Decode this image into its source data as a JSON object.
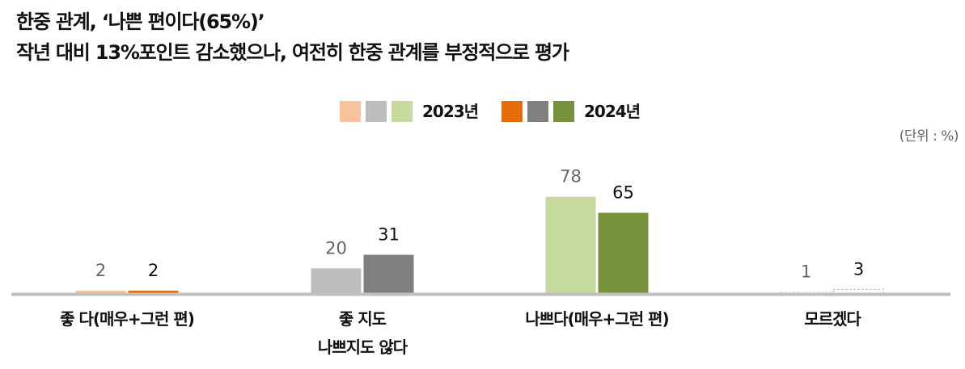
{
  "title": {
    "line1": "한중 관계, ‘나쁜 편이다(65%)’",
    "line2": "작년 대비 13%포인트 감소했으나, 여전히 한중 관계를 부정적으로 평가"
  },
  "legend": {
    "series_2023": "2023년",
    "series_2024": "2024년"
  },
  "unit_note": "(단위 : %)",
  "colors": {
    "2023": [
      "#F8C39C",
      "#BDBDBD",
      "#C6DA9E",
      "#D8D8D8"
    ],
    "2024": [
      "#E46C0A",
      "#7F7F7F",
      "#77933C",
      "#A6A6A6"
    ],
    "label_2023": "#666666",
    "label_2024": "#111111",
    "axis": "#BFBFBF"
  },
  "chart_data": {
    "type": "bar",
    "title": "",
    "xlabel": "",
    "ylabel": "",
    "categories": [
      "좋 다(매우+그런 편)",
      "좋 지도\n나쁘지도 않다",
      "나쁘다(매우+그런 편)",
      "모르겠다"
    ],
    "series": [
      {
        "name": "2023년",
        "values": [
          2,
          20,
          78,
          1
        ]
      },
      {
        "name": "2024년",
        "values": [
          2,
          31,
          65,
          3
        ]
      }
    ],
    "ylim": [
      0,
      100
    ],
    "grid": false,
    "legend_position": "top-center"
  }
}
